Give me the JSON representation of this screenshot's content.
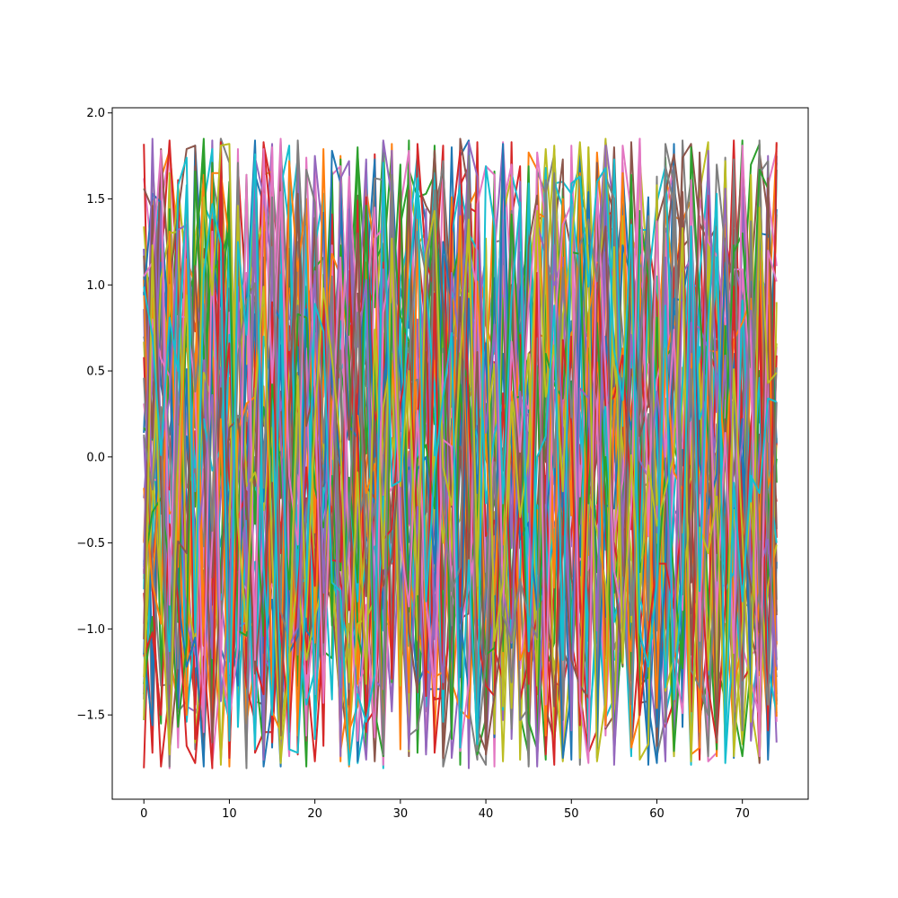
{
  "chart_data": {
    "type": "line",
    "title": "",
    "xlabel": "",
    "ylabel": "",
    "xlim": [
      -3.7,
      77.7
    ],
    "ylim": [
      -1.99,
      2.03
    ],
    "grid": false,
    "legend": "none",
    "n_series": 50,
    "n_points": 75,
    "value_range": [
      -1.81,
      1.85
    ],
    "palette": [
      "#1f77b4",
      "#ff7f0e",
      "#2ca02c",
      "#d62728",
      "#9467bd",
      "#8c564b",
      "#e377c2",
      "#7f7f7f",
      "#bcbd22",
      "#17becf"
    ],
    "x_ticks": [
      {
        "value": 0,
        "label": "0"
      },
      {
        "value": 10,
        "label": "10"
      },
      {
        "value": 20,
        "label": "20"
      },
      {
        "value": 30,
        "label": "30"
      },
      {
        "value": 40,
        "label": "40"
      },
      {
        "value": 50,
        "label": "50"
      },
      {
        "value": 60,
        "label": "60"
      },
      {
        "value": 70,
        "label": "70"
      }
    ],
    "y_ticks": [
      {
        "value": -1.5,
        "label": "−1.5"
      },
      {
        "value": -1.0,
        "label": "−1.0"
      },
      {
        "value": -0.5,
        "label": "−0.5"
      },
      {
        "value": 0.0,
        "label": "0.0"
      },
      {
        "value": 0.5,
        "label": "0.5"
      },
      {
        "value": 1.0,
        "label": "1.0"
      },
      {
        "value": 1.5,
        "label": "1.5"
      },
      {
        "value": 2.0,
        "label": "2.0"
      }
    ]
  }
}
